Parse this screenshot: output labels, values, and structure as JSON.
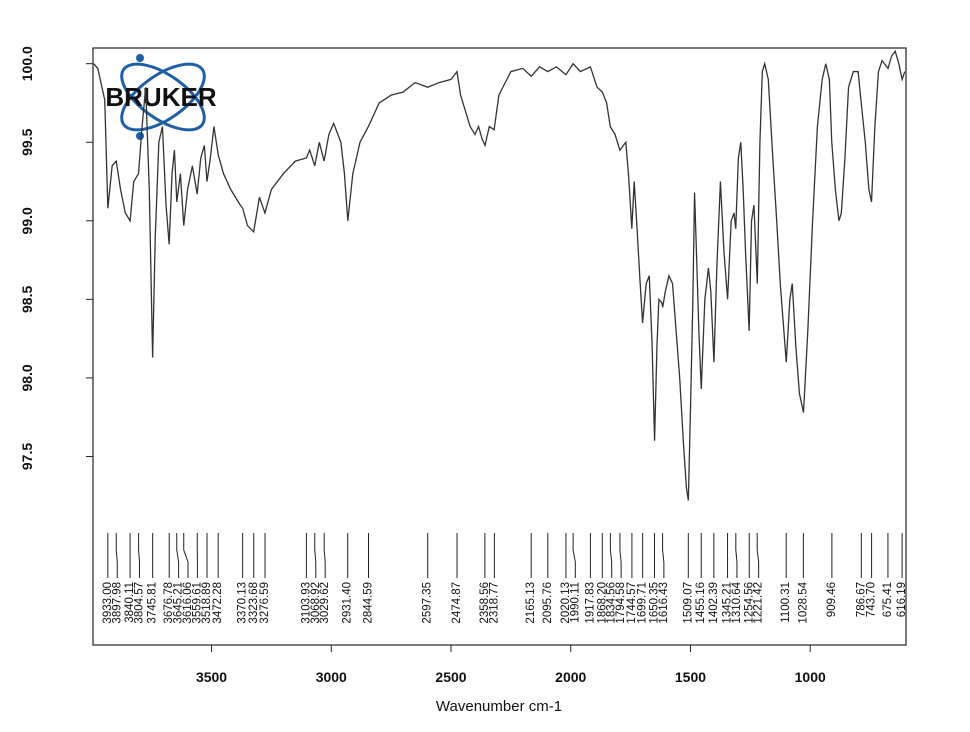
{
  "chart_data": {
    "type": "line",
    "x_label": "Wavenumber cm-1",
    "logo": "BRUKER",
    "xlim": [
      3995,
      600
    ],
    "ylim": [
      96.3,
      100.1
    ],
    "xticks": [
      3500,
      3000,
      2500,
      2000,
      1500,
      1000
    ],
    "yticks": [
      {
        "value": 100.0,
        "label": "100.0"
      },
      99.5,
      {
        "value": 99.0,
        "label": "99.0"
      },
      98.5,
      {
        "value": 98.0,
        "label": "98.0"
      },
      97.5
    ],
    "color": "#333333",
    "x": [
      3992,
      3975,
      3946,
      3933,
      3915,
      3898,
      3880,
      3860,
      3840,
      3825,
      3805,
      3790,
      3775,
      3760,
      3746,
      3735,
      3720,
      3705,
      3690,
      3677,
      3665,
      3655,
      3645,
      3630,
      3616,
      3600,
      3580,
      3560,
      3545,
      3530,
      3519,
      3505,
      3490,
      3472,
      3450,
      3420,
      3400,
      3380,
      3370,
      3350,
      3324,
      3300,
      3277,
      3250,
      3200,
      3150,
      3104,
      3090,
      3069,
      3050,
      3030,
      3010,
      2990,
      2960,
      2945,
      2931,
      2910,
      2880,
      2845,
      2800,
      2750,
      2700,
      2650,
      2597,
      2550,
      2500,
      2475,
      2460,
      2440,
      2420,
      2400,
      2385,
      2370,
      2358,
      2340,
      2320,
      2300,
      2250,
      2200,
      2165,
      2130,
      2096,
      2060,
      2020,
      1990,
      1960,
      1918,
      1890,
      1868,
      1850,
      1835,
      1815,
      1795,
      1770,
      1758,
      1745,
      1735,
      1725,
      1710,
      1700,
      1685,
      1672,
      1660,
      1650,
      1640,
      1632,
      1620,
      1616,
      1605,
      1590,
      1575,
      1560,
      1545,
      1530,
      1517,
      1509,
      1500,
      1490,
      1483,
      1475,
      1465,
      1455,
      1440,
      1425,
      1415,
      1402,
      1390,
      1375,
      1360,
      1345,
      1330,
      1318,
      1311,
      1300,
      1290,
      1280,
      1270,
      1255,
      1245,
      1235,
      1221,
      1210,
      1200,
      1190,
      1175,
      1160,
      1140,
      1125,
      1110,
      1100,
      1085,
      1075,
      1060,
      1045,
      1028,
      1010,
      990,
      970,
      950,
      935,
      920,
      910,
      895,
      880,
      870,
      855,
      840,
      820,
      800,
      787,
      770,
      755,
      744,
      730,
      715,
      700,
      690,
      675,
      660,
      645,
      630,
      616,
      605
    ],
    "values": [
      100.0,
      99.97,
      99.77,
      99.08,
      99.35,
      99.38,
      99.2,
      99.05,
      99.0,
      99.25,
      99.3,
      99.6,
      99.85,
      99.2,
      98.13,
      98.9,
      99.5,
      99.6,
      99.1,
      98.85,
      99.3,
      99.45,
      99.12,
      99.3,
      98.97,
      99.2,
      99.35,
      99.17,
      99.4,
      99.48,
      99.25,
      99.4,
      99.6,
      99.42,
      99.3,
      99.2,
      99.15,
      99.1,
      99.08,
      98.97,
      98.93,
      99.15,
      99.05,
      99.2,
      99.3,
      99.38,
      99.4,
      99.45,
      99.35,
      99.5,
      99.38,
      99.55,
      99.62,
      99.5,
      99.3,
      99.0,
      99.3,
      99.5,
      99.6,
      99.75,
      99.8,
      99.82,
      99.88,
      99.85,
      99.88,
      99.9,
      99.95,
      99.8,
      99.7,
      99.6,
      99.55,
      99.6,
      99.52,
      99.48,
      99.6,
      99.58,
      99.8,
      99.95,
      99.97,
      99.92,
      99.98,
      99.95,
      99.98,
      99.93,
      100.0,
      99.95,
      99.98,
      99.85,
      99.82,
      99.75,
      99.6,
      99.55,
      99.45,
      99.5,
      99.28,
      98.95,
      99.25,
      99.0,
      98.6,
      98.35,
      98.6,
      98.65,
      98.2,
      97.6,
      98.2,
      98.5,
      98.48,
      98.45,
      98.55,
      98.65,
      98.6,
      98.3,
      98.0,
      97.6,
      97.3,
      97.22,
      97.8,
      98.5,
      99.18,
      98.8,
      98.3,
      97.93,
      98.5,
      98.7,
      98.55,
      98.1,
      98.7,
      99.25,
      98.8,
      98.5,
      99.0,
      99.05,
      98.95,
      99.4,
      99.5,
      99.2,
      98.8,
      98.3,
      99.0,
      99.1,
      98.6,
      99.5,
      99.95,
      100.0,
      99.9,
      99.5,
      99.0,
      98.6,
      98.3,
      98.1,
      98.5,
      98.6,
      98.2,
      97.9,
      97.78,
      98.3,
      99.0,
      99.6,
      99.9,
      100.0,
      99.9,
      99.5,
      99.2,
      99.0,
      99.05,
      99.4,
      99.85,
      99.95,
      99.95,
      99.75,
      99.5,
      99.2,
      99.12,
      99.6,
      99.95,
      100.02,
      100.0,
      99.97,
      100.05,
      100.08,
      100.0,
      99.9,
      99.95
    ],
    "peaks": [
      {
        "value": 3933.0,
        "label": "3933.00"
      },
      {
        "value": 3897.98,
        "label": "3897.98"
      },
      {
        "value": 3840.11,
        "label": "3840.11"
      },
      {
        "value": 3804.57,
        "label": "3804.57"
      },
      {
        "value": 3745.81,
        "label": "3745.81"
      },
      {
        "value": 3676.78,
        "label": "3676.78"
      },
      {
        "value": 3645.21,
        "label": "3645.21"
      },
      {
        "value": 3616.06,
        "label": "3616.06"
      },
      {
        "value": 3559.61,
        "label": "3559.61"
      },
      {
        "value": 3518.89,
        "label": "3518.89"
      },
      {
        "value": 3472.28,
        "label": "3472.28"
      },
      {
        "value": 3370.13,
        "label": "3370.13"
      },
      {
        "value": 3323.68,
        "label": "3323.68"
      },
      {
        "value": 3276.59,
        "label": "3276.59"
      },
      {
        "value": 3103.93,
        "label": "3103.93"
      },
      {
        "value": 3068.92,
        "label": "3068.92"
      },
      {
        "value": 3029.62,
        "label": "3029.62"
      },
      {
        "value": 2931.4,
        "label": "2931.40"
      },
      {
        "value": 2844.59,
        "label": "2844.59"
      },
      {
        "value": 2597.35,
        "label": "2597.35"
      },
      {
        "value": 2474.87,
        "label": "2474.87"
      },
      {
        "value": 2358.56,
        "label": "2358.56"
      },
      {
        "value": 2318.77,
        "label": "2318.77"
      },
      {
        "value": 2165.13,
        "label": "2165.13"
      },
      {
        "value": 2095.76,
        "label": "2095.76"
      },
      {
        "value": 2020.13,
        "label": "2020.13"
      },
      {
        "value": 1990.11,
        "label": "1990.11"
      },
      {
        "value": 1917.83,
        "label": "1917.83"
      },
      {
        "value": 1868.2,
        "label": "1868.20"
      },
      {
        "value": 1834.56,
        "label": "1834.56"
      },
      {
        "value": 1794.58,
        "label": "1794.58"
      },
      {
        "value": 1744.57,
        "label": "1744.57"
      },
      {
        "value": 1699.71,
        "label": "1699.71"
      },
      {
        "value": 1650.35,
        "label": "1650.35"
      },
      {
        "value": 1616.43,
        "label": "1616.43"
      },
      {
        "value": 1509.07,
        "label": "1509.07"
      },
      {
        "value": 1455.16,
        "label": "1455.16"
      },
      {
        "value": 1402.39,
        "label": "1402.39"
      },
      {
        "value": 1345.21,
        "label": "1345.21"
      },
      {
        "value": 1310.64,
        "label": "1310.64"
      },
      {
        "value": 1254.56,
        "label": "1254.56"
      },
      {
        "value": 1221.42,
        "label": "1221.42"
      },
      {
        "value": 1100.31,
        "label": "1100.31"
      },
      {
        "value": 1028.54,
        "label": "1028.54"
      },
      {
        "value": 909.46,
        "label": "909.46"
      },
      {
        "value": 786.67,
        "label": "786.67"
      },
      {
        "value": 743.7,
        "label": "743.70"
      },
      {
        "value": 675.41,
        "label": "675.41"
      },
      {
        "value": 616.19,
        "label": "616.19"
      }
    ]
  }
}
